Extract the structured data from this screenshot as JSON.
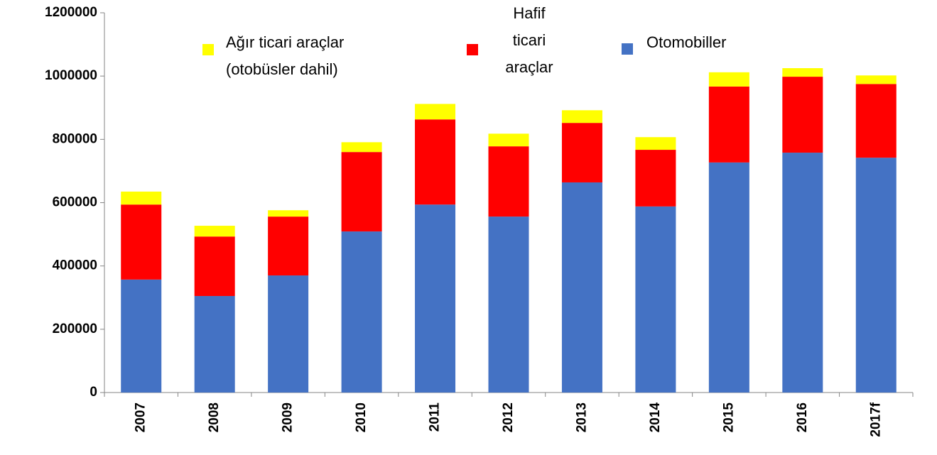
{
  "chart_data": {
    "type": "stacked_bar",
    "categories": [
      "2007",
      "2008",
      "2009",
      "2010",
      "2011",
      "2012",
      "2013",
      "2014",
      "2015",
      "2016",
      "2017f"
    ],
    "series": [
      {
        "name": "Otomobiller",
        "color": "#4472c4",
        "values": [
          357000,
          305000,
          370000,
          509000,
          594000,
          556000,
          664000,
          588000,
          727000,
          758000,
          742000
        ]
      },
      {
        "name": "Hafif ticari araçlar",
        "color": "#ff0000",
        "values": [
          237000,
          188000,
          186000,
          251000,
          269000,
          222000,
          188000,
          179000,
          240000,
          240000,
          233000
        ]
      },
      {
        "name": "Ağır ticari araçlar (otobüsler dahil)",
        "color": "#ffff00",
        "values": [
          41000,
          34000,
          20000,
          31000,
          49000,
          40000,
          40000,
          40000,
          45000,
          27000,
          27000
        ]
      }
    ],
    "ylim": [
      0,
      1200000
    ],
    "yticks": [
      0,
      200000,
      400000,
      600000,
      800000,
      1000000,
      1200000
    ]
  }
}
